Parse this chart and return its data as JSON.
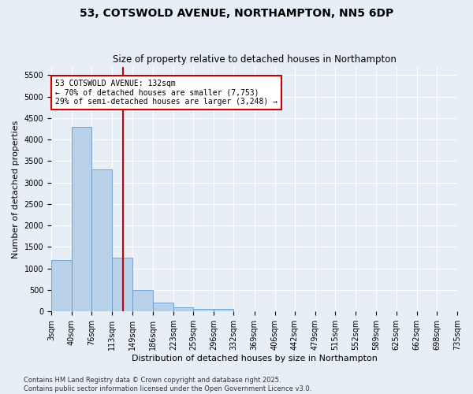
{
  "title": "53, COTSWOLD AVENUE, NORTHAMPTON, NN5 6DP",
  "subtitle": "Size of property relative to detached houses in Northampton",
  "xlabel": "Distribution of detached houses by size in Northampton",
  "ylabel": "Number of detached properties",
  "bar_color": "#b8d0e8",
  "bar_edge_color": "#6699cc",
  "background_color": "#e8eef6",
  "grid_color": "#ffffff",
  "annotation_box_color": "#cc0000",
  "vline_color": "#cc0000",
  "vline_x": 132,
  "annotation_text": "53 COTSWOLD AVENUE: 132sqm\n← 70% of detached houses are smaller (7,753)\n29% of semi-detached houses are larger (3,248) →",
  "footer_text": "Contains HM Land Registry data © Crown copyright and database right 2025.\nContains public sector information licensed under the Open Government Licence v3.0.",
  "bin_edges": [
    3,
    40,
    76,
    113,
    149,
    186,
    223,
    259,
    296,
    332,
    369,
    406,
    442,
    479,
    515,
    552,
    589,
    625,
    662,
    698,
    735
  ],
  "bar_heights": [
    1200,
    4300,
    3300,
    1250,
    500,
    200,
    100,
    50,
    50,
    0,
    0,
    0,
    0,
    0,
    0,
    0,
    0,
    0,
    0,
    0
  ],
  "ylim": [
    0,
    5700
  ],
  "yticks": [
    0,
    500,
    1000,
    1500,
    2000,
    2500,
    3000,
    3500,
    4000,
    4500,
    5000,
    5500
  ],
  "title_fontsize": 10,
  "subtitle_fontsize": 8.5,
  "label_fontsize": 8,
  "tick_fontsize": 7,
  "footer_fontsize": 6,
  "annot_fontsize": 7
}
